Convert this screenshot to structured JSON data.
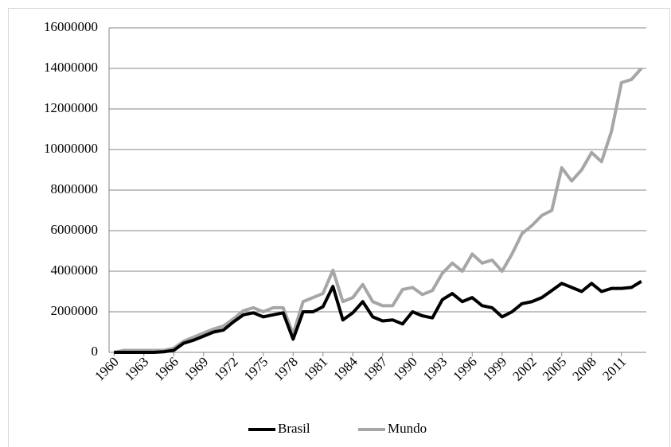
{
  "chart_data": {
    "type": "line",
    "x": [
      1960,
      1961,
      1962,
      1963,
      1964,
      1965,
      1966,
      1967,
      1968,
      1969,
      1970,
      1971,
      1972,
      1973,
      1974,
      1975,
      1976,
      1977,
      1978,
      1979,
      1980,
      1981,
      1982,
      1983,
      1984,
      1985,
      1986,
      1987,
      1988,
      1989,
      1990,
      1991,
      1992,
      1993,
      1994,
      1995,
      1996,
      1997,
      1998,
      1999,
      2000,
      2001,
      2002,
      2003,
      2004,
      2005,
      2006,
      2007,
      2008,
      2009,
      2010,
      2011,
      2012,
      2013
    ],
    "xlim": [
      1959.5,
      2013.5
    ],
    "xticks": [
      1960,
      1963,
      1966,
      1969,
      1972,
      1975,
      1978,
      1981,
      1984,
      1987,
      1990,
      1993,
      1996,
      1999,
      2002,
      2005,
      2008,
      2011
    ],
    "ylim": [
      0,
      16000000
    ],
    "yticks": [
      0,
      2000000,
      4000000,
      6000000,
      8000000,
      10000000,
      12000000,
      14000000,
      16000000
    ],
    "grid": true,
    "legend": "bottom",
    "series": [
      {
        "name": "Brasil",
        "color": "#000000",
        "values": [
          0,
          0,
          0,
          0,
          0,
          30000,
          100000,
          450000,
          600000,
          800000,
          1000000,
          1100000,
          1500000,
          1850000,
          1950000,
          1750000,
          1850000,
          1950000,
          650000,
          2000000,
          2000000,
          2250000,
          3250000,
          1600000,
          1950000,
          2500000,
          1750000,
          1550000,
          1600000,
          1400000,
          2000000,
          1800000,
          1700000,
          2600000,
          2900000,
          2500000,
          2700000,
          2300000,
          2200000,
          1750000,
          2000000,
          2400000,
          2500000,
          2700000,
          3050000,
          3400000,
          3200000,
          3000000,
          3400000,
          3000000,
          3150000,
          3150000,
          3200000,
          3500000
        ]
      },
      {
        "name": "Mundo",
        "color": "#a6a6a6",
        "values": [
          0,
          100000,
          100000,
          100000,
          100000,
          100000,
          200000,
          550000,
          750000,
          950000,
          1150000,
          1300000,
          1650000,
          2050000,
          2200000,
          2000000,
          2200000,
          2200000,
          900000,
          2500000,
          2700000,
          2900000,
          4050000,
          2500000,
          2700000,
          3350000,
          2500000,
          2300000,
          2300000,
          3100000,
          3200000,
          2850000,
          3050000,
          3900000,
          4400000,
          4000000,
          4850000,
          4400000,
          4550000,
          4000000,
          4850000,
          5850000,
          6250000,
          6750000,
          7000000,
          9100000,
          8450000,
          9000000,
          9850000,
          9400000,
          10900000,
          13300000,
          13450000,
          14000000
        ]
      }
    ]
  }
}
